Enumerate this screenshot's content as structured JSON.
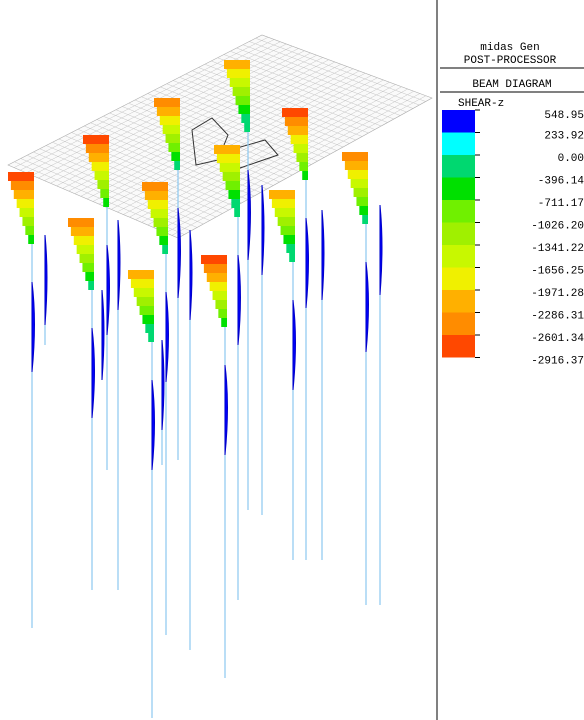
{
  "header": {
    "app": "midas Gen",
    "module": "POST-PROCESSOR",
    "diagram": "BEAM DIAGRAM",
    "component": "SHEAR-z"
  },
  "legend": {
    "colors": [
      "#0000ff",
      "#00ffff",
      "#00d870",
      "#00e000",
      "#70f000",
      "#a0f000",
      "#c8f800",
      "#f0f000",
      "#ffb000",
      "#ff8c00",
      "#ff4800"
    ],
    "labels": [
      "548.95",
      "233.92",
      "0.00",
      "-396.14",
      "-711.17",
      "-1026.20",
      "-1341.22",
      "-1656.25",
      "-1971.28",
      "-2286.31",
      "-2601.34",
      "-2916.37"
    ]
  }
}
